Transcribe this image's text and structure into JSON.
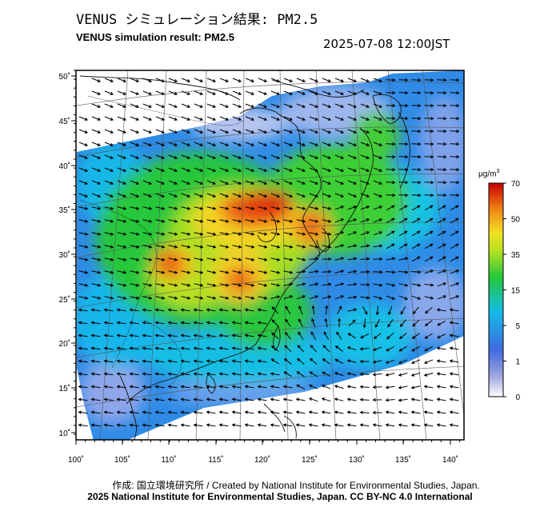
{
  "header": {
    "title_jp": "VENUS シミュレーション結果: PM2.5",
    "title_en": "VENUS simulation result: PM2.5",
    "timestamp": "2025-07-08 12:00JST"
  },
  "map": {
    "lon_labels": [
      "100˚",
      "105˚",
      "110˚",
      "115˚",
      "120˚",
      "125˚",
      "130˚",
      "135˚",
      "140˚"
    ],
    "lat_labels": [
      "10˚",
      "15˚",
      "20˚",
      "25˚",
      "30˚",
      "35˚",
      "40˚",
      "45˚",
      "50˚"
    ],
    "lon_range": [
      100,
      141
    ],
    "lat_range": [
      9,
      51
    ]
  },
  "colorbar": {
    "unit": "μg/m",
    "unit_sup": "3",
    "ticks": [
      "0",
      "1",
      "5",
      "15",
      "35",
      "50",
      "70"
    ],
    "colors": [
      "#ffffff",
      "#7b87d6",
      "#3b62e0",
      "#10b8e8",
      "#22c838",
      "#a8e01e",
      "#f4e020",
      "#f7a01a",
      "#e33e10",
      "#c40000"
    ]
  },
  "footer": {
    "credit": "作成: 国立環境研究所 / Created by National Institute for Environmental Studies, Japan.",
    "license": "2025 National Institute for Environmental Studies, Japan. CC BY-NC 4.0 International"
  }
}
